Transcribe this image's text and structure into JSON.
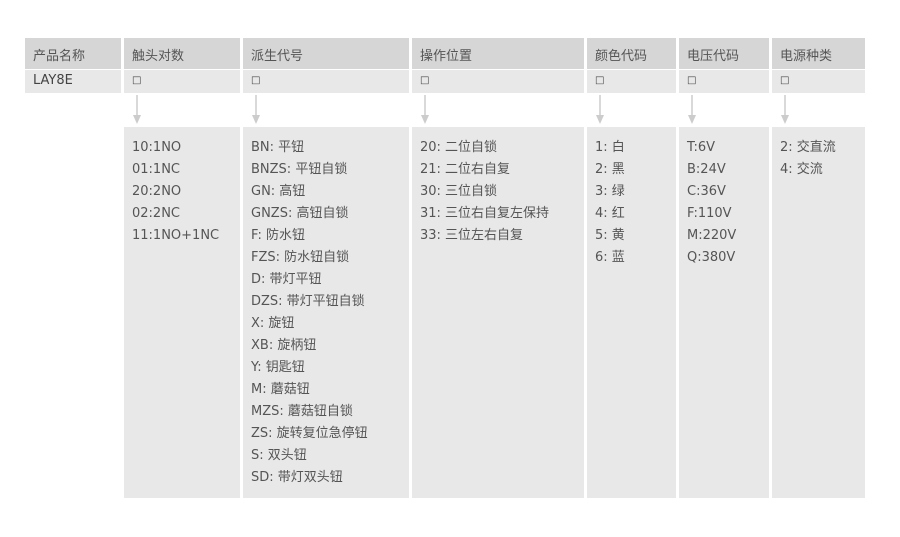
{
  "columns": [
    {
      "header": "产品名称",
      "value": "LAY8E",
      "options": []
    },
    {
      "header": "触头对数",
      "value": "□",
      "options": [
        "10:1NO",
        "01:1NC",
        "20:2NO",
        "02:2NC",
        "11:1NO+1NC"
      ]
    },
    {
      "header": "派生代号",
      "value": "□",
      "options": [
        "BN: 平钮",
        "BNZS: 平钮自锁",
        "GN: 高钮",
        "GNZS: 高钮自锁",
        "F: 防水钮",
        "FZS: 防水钮自锁",
        "D: 带灯平钮",
        "DZS: 带灯平钮自锁",
        "X: 旋钮",
        "XB: 旋柄钮",
        "Y: 钥匙钮",
        "M: 蘑菇钮",
        "MZS: 蘑菇钮自锁",
        "ZS: 旋转复位急停钮",
        "S: 双头钮",
        "SD: 带灯双头钮"
      ]
    },
    {
      "header": "操作位置",
      "value": "□",
      "options": [
        "20: 二位自锁",
        "21: 二位右自复",
        "30: 三位自锁",
        "31: 三位右自复左保持",
        "33: 三位左右自复"
      ]
    },
    {
      "header": "颜色代码",
      "value": "□",
      "options": [
        "1: 白",
        "2: 黑",
        "3: 绿",
        "4: 红",
        "5: 黄",
        "6: 蓝"
      ]
    },
    {
      "header": "电压代码",
      "value": "□",
      "options": [
        "T:6V",
        "B:24V",
        "C:36V",
        "F:110V",
        "M:220V",
        "Q:380V"
      ]
    },
    {
      "header": "电源种类",
      "value": "□",
      "options": [
        "2: 交直流",
        "4: 交流"
      ]
    }
  ],
  "colors": {
    "header_bg": "#d6d6d6",
    "cell_bg": "#e8e8e8",
    "text": "#555555",
    "arrow": "#cccccc"
  }
}
